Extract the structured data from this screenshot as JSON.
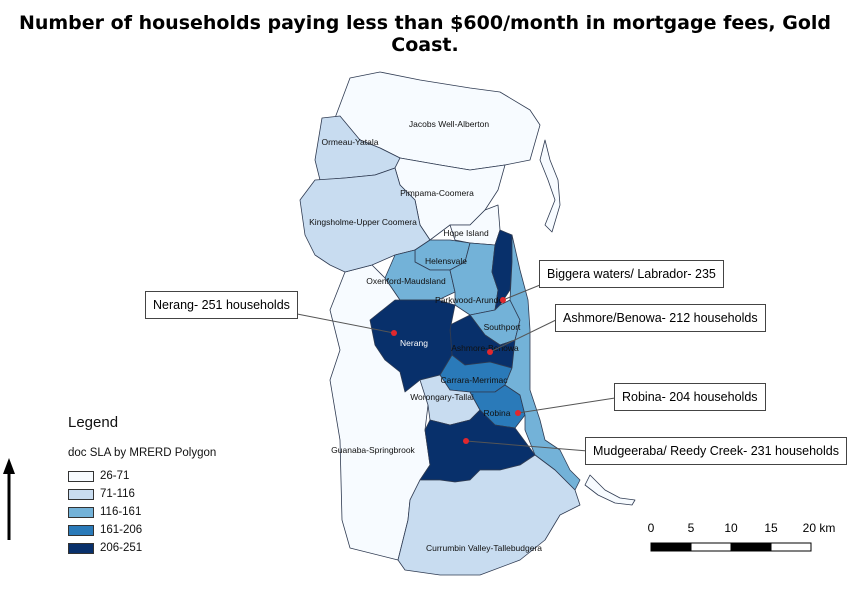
{
  "title": "Number of households paying less than $600/month in mortgage fees, Gold Coast.",
  "regions": {
    "jacobs_well": "Jacobs Well-Alberton",
    "ormeau": "Ormeau-Yatala",
    "pimpama": "Pimpama-Coomera",
    "kingsholme": "Kingsholme-Upper Coomera",
    "hope_island": "Hope Island",
    "helensvale": "Helensvale",
    "oxenford": "Oxenford-Maudsland",
    "parkwood": "Parkwood-Arundel",
    "southport": "Southport",
    "nerang": "Nerang",
    "ashmore": "Ashmore-Benowa",
    "carrara": "Carrara-Merrimac",
    "worongary": "Worongary-Tallai",
    "robina": "Robina",
    "guanaba": "Guanaba-Springbrook",
    "currumbin": "Currumbin Valley-Tallebudgera"
  },
  "callouts": {
    "biggera": "Biggera waters/ Labrador- 235",
    "nerang": "Nerang- 251 households",
    "ashmore": "Ashmore/Benowa- 212 households",
    "robina": "Robina- 204 households",
    "mudgeeraba": "Mudgeeraba/ Reedy Creek- 231 households"
  },
  "legend": {
    "title": "Legend",
    "layer": "doc SLA by MRERD Polygon",
    "classes": [
      {
        "label": "26-71",
        "color": "#f7fbff"
      },
      {
        "label": "71-116",
        "color": "#c8dcf0"
      },
      {
        "label": "116-161",
        "color": "#73b2d8"
      },
      {
        "label": "161-206",
        "color": "#2a7ab9"
      },
      {
        "label": "206-251",
        "color": "#08306b"
      }
    ]
  },
  "scale_bar": {
    "labels": [
      "0",
      "5",
      "10",
      "15",
      "20 km"
    ]
  }
}
